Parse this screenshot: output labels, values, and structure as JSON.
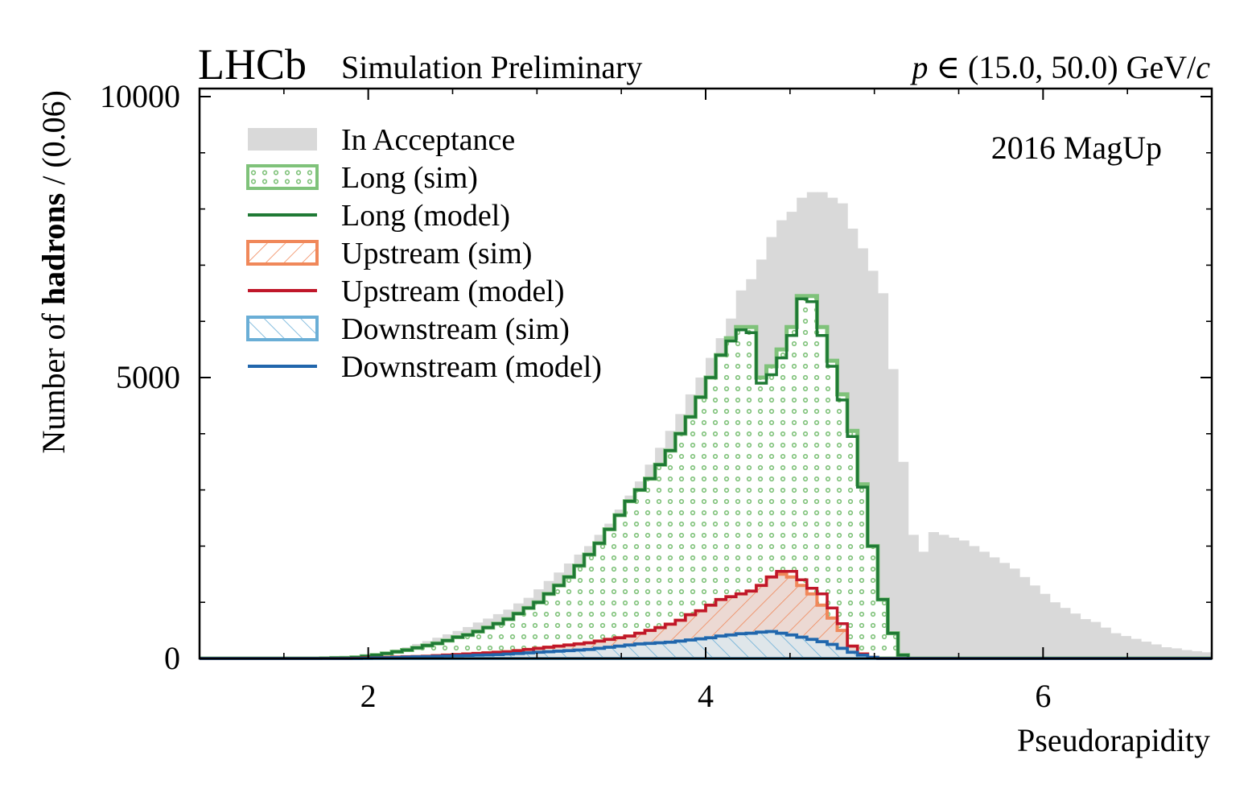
{
  "header": {
    "brand": "LHCb",
    "subtitle": "Simulation Preliminary",
    "range_p": "p",
    "range_in": " ∈ (15.0, 50.0) GeV/",
    "range_c": "c"
  },
  "annotation": "2016 MagUp",
  "colors": {
    "acceptance": "#d9d9d9",
    "long_sim": "#7fc27a",
    "long_model": "#1f7a35",
    "upstream_sim": "#f0885a",
    "upstream_model": "#c0172a",
    "downstream_sim": "#6aaed6",
    "downstream_model": "#2166ac"
  },
  "chart_data": {
    "type": "histogram",
    "xlabel": "Pseudorapidity",
    "ylabel_prefix": "Number of ",
    "ylabel_bold": "hadrons",
    "ylabel_suffix": " / (0.06)",
    "xlim": [
      1.0,
      7.0
    ],
    "ylim": [
      0,
      10000
    ],
    "bin_width": 0.06,
    "x_start": 1.0,
    "x_ticks": [
      2,
      4,
      6
    ],
    "x_tick_labels": [
      "2",
      "4",
      "6"
    ],
    "y_ticks": [
      0,
      5000,
      10000
    ],
    "y_tick_labels": [
      "0",
      "5000",
      "10000"
    ],
    "legend_position": "upper-left",
    "legend": [
      {
        "key": "acceptance",
        "label": "In Acceptance",
        "kind": "fill"
      },
      {
        "key": "long_sim",
        "label": "Long (sim)",
        "kind": "dots"
      },
      {
        "key": "long_model",
        "label": "Long (model)",
        "kind": "line"
      },
      {
        "key": "upstream_sim",
        "label": "Upstream (sim)",
        "kind": "hatch-back"
      },
      {
        "key": "upstream_model",
        "label": "Upstream (model)",
        "kind": "line"
      },
      {
        "key": "downstream_sim",
        "label": "Downstream (sim)",
        "kind": "hatch-fwd"
      },
      {
        "key": "downstream_model",
        "label": "Downstream (model)",
        "kind": "line"
      }
    ],
    "series": {
      "acceptance": [
        0,
        0,
        0,
        0,
        0,
        0,
        0,
        0,
        0,
        0,
        0,
        0,
        5,
        10,
        15,
        20,
        40,
        70,
        110,
        160,
        200,
        260,
        310,
        370,
        430,
        490,
        560,
        640,
        710,
        790,
        870,
        980,
        1080,
        1230,
        1380,
        1530,
        1690,
        1850,
        2000,
        2200,
        2400,
        2650,
        2900,
        3150,
        3450,
        3750,
        4050,
        4350,
        4700,
        5000,
        5350,
        5700,
        6050,
        6550,
        6750,
        7100,
        7500,
        7800,
        7950,
        8200,
        8300,
        8300,
        8200,
        8100,
        7650,
        7300,
        6900,
        6500,
        5150,
        3500,
        2200,
        1900,
        2250,
        2200,
        2150,
        2100,
        2000,
        1900,
        1800,
        1700,
        1600,
        1450,
        1300,
        1150,
        1000,
        900,
        800,
        700,
        650,
        550,
        450,
        400,
        350,
        300,
        250,
        200,
        180,
        150,
        130,
        110,
        100
      ],
      "long_sim": [
        0,
        0,
        0,
        0,
        0,
        0,
        0,
        0,
        0,
        0,
        0,
        0,
        5,
        8,
        12,
        20,
        40,
        60,
        90,
        120,
        150,
        190,
        230,
        270,
        320,
        380,
        420,
        480,
        550,
        620,
        700,
        800,
        900,
        1000,
        1150,
        1300,
        1450,
        1650,
        1850,
        2050,
        2300,
        2550,
        2800,
        3000,
        3200,
        3450,
        3700,
        4000,
        4300,
        4650,
        5000,
        5400,
        5700,
        5900,
        5900,
        5000,
        5200,
        5500,
        5900,
        6450,
        6450,
        5900,
        5300,
        4700,
        4050,
        3100,
        2000,
        1050,
        450,
        60,
        0,
        0,
        0,
        0,
        0,
        0,
        0,
        0,
        0,
        0,
        0,
        0,
        0,
        0,
        0,
        0,
        0,
        0,
        0,
        0,
        0,
        0,
        0,
        0,
        0,
        0,
        0,
        0,
        0,
        0
      ],
      "long_model": [
        0,
        0,
        0,
        0,
        0,
        0,
        0,
        0,
        0,
        0,
        0,
        0,
        5,
        8,
        12,
        20,
        40,
        60,
        90,
        120,
        150,
        190,
        230,
        270,
        320,
        380,
        420,
        480,
        550,
        620,
        700,
        800,
        900,
        1000,
        1150,
        1300,
        1450,
        1650,
        1850,
        2050,
        2300,
        2550,
        2800,
        3000,
        3200,
        3450,
        3700,
        4000,
        4300,
        4650,
        5000,
        5400,
        5650,
        5850,
        5800,
        4900,
        5050,
        5350,
        5750,
        6400,
        6350,
        5750,
        5200,
        4600,
        3950,
        3050,
        2000,
        1050,
        450,
        60,
        0,
        0,
        0,
        0,
        0,
        0,
        0,
        0,
        0,
        0,
        0,
        0,
        0,
        0,
        0,
        0,
        0,
        0,
        0,
        0,
        0,
        0,
        0,
        0,
        0,
        0,
        0,
        0,
        0,
        0
      ],
      "upstream_sim": [
        0,
        0,
        0,
        0,
        0,
        0,
        0,
        0,
        0,
        0,
        0,
        0,
        0,
        0,
        0,
        5,
        10,
        15,
        20,
        25,
        30,
        35,
        40,
        50,
        60,
        70,
        80,
        90,
        100,
        110,
        120,
        140,
        160,
        180,
        200,
        220,
        240,
        260,
        280,
        310,
        340,
        370,
        400,
        450,
        500,
        550,
        610,
        680,
        780,
        850,
        950,
        1050,
        1100,
        1150,
        1200,
        1300,
        1450,
        1500,
        1450,
        1300,
        1150,
        950,
        720,
        500,
        220,
        80,
        20,
        0,
        0,
        0,
        0,
        0,
        0,
        0,
        0,
        0,
        0,
        0,
        0,
        0,
        0,
        0,
        0,
        0,
        0,
        0,
        0,
        0,
        0,
        0,
        0,
        0,
        0,
        0,
        0,
        0,
        0,
        0,
        0,
        0
      ],
      "upstream_model": [
        0,
        0,
        0,
        0,
        0,
        0,
        0,
        0,
        0,
        0,
        0,
        0,
        0,
        0,
        0,
        5,
        10,
        15,
        20,
        25,
        30,
        35,
        40,
        50,
        60,
        70,
        80,
        90,
        100,
        110,
        120,
        140,
        160,
        180,
        200,
        220,
        240,
        260,
        280,
        310,
        340,
        370,
        400,
        450,
        500,
        550,
        610,
        680,
        780,
        850,
        950,
        1050,
        1100,
        1150,
        1200,
        1300,
        1450,
        1550,
        1550,
        1400,
        1250,
        1150,
        900,
        620,
        220,
        80,
        20,
        0,
        0,
        0,
        0,
        0,
        0,
        0,
        0,
        0,
        0,
        0,
        0,
        0,
        0,
        0,
        0,
        0,
        0,
        0,
        0,
        0,
        0,
        0,
        0,
        0,
        0,
        0,
        0,
        0,
        0,
        0,
        0,
        0
      ],
      "downstream_sim": [
        0,
        0,
        0,
        0,
        0,
        0,
        0,
        0,
        0,
        0,
        0,
        0,
        0,
        0,
        0,
        0,
        5,
        10,
        15,
        20,
        25,
        30,
        35,
        40,
        45,
        50,
        55,
        60,
        65,
        70,
        80,
        90,
        100,
        110,
        120,
        130,
        140,
        150,
        160,
        180,
        200,
        220,
        240,
        260,
        270,
        280,
        290,
        310,
        330,
        350,
        370,
        400,
        420,
        440,
        450,
        470,
        480,
        450,
        420,
        380,
        340,
        300,
        250,
        180,
        110,
        60,
        20,
        0,
        0,
        0,
        0,
        0,
        0,
        0,
        0,
        0,
        0,
        0,
        0,
        0,
        0,
        0,
        0,
        0,
        0,
        0,
        0,
        0,
        0,
        0,
        0,
        0,
        0,
        0,
        0,
        0,
        0,
        0,
        0,
        0
      ],
      "downstream_model": [
        0,
        0,
        0,
        0,
        0,
        0,
        0,
        0,
        0,
        0,
        0,
        0,
        0,
        0,
        0,
        0,
        5,
        10,
        15,
        20,
        25,
        30,
        35,
        40,
        45,
        50,
        55,
        60,
        65,
        70,
        80,
        90,
        100,
        110,
        120,
        130,
        140,
        150,
        160,
        180,
        200,
        220,
        240,
        260,
        270,
        280,
        290,
        310,
        330,
        350,
        370,
        400,
        420,
        440,
        450,
        470,
        480,
        450,
        420,
        380,
        340,
        300,
        250,
        180,
        110,
        60,
        20,
        0,
        0,
        0,
        0,
        0,
        0,
        0,
        0,
        0,
        0,
        0,
        0,
        0,
        0,
        0,
        0,
        0,
        0,
        0,
        0,
        0,
        0,
        0,
        0,
        0,
        0,
        0,
        0,
        0,
        0,
        0,
        0,
        0
      ]
    }
  }
}
